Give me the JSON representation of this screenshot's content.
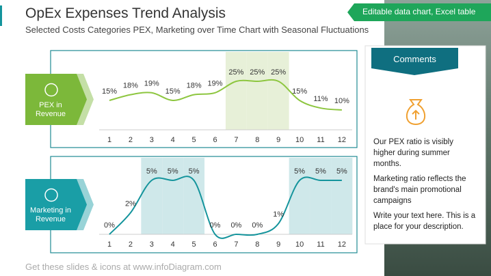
{
  "header": {
    "title": "OpEx Expenses Trend Analysis",
    "subtitle": "Selected Costs Categories PEX, Marketing over Time Chart with Seasonal Fluctuations",
    "badge": "Editable data chart, Excel table"
  },
  "chart_data": [
    {
      "type": "line",
      "label": "PEX in Revenue",
      "categories": [
        "1",
        "2",
        "3",
        "4",
        "5",
        "6",
        "7",
        "8",
        "9",
        "10",
        "11",
        "12"
      ],
      "values": [
        15,
        18,
        19,
        15,
        18,
        19,
        25,
        25,
        25,
        15,
        11,
        10
      ],
      "value_labels": [
        "15%",
        "18%",
        "19%",
        "15%",
        "18%",
        "19%",
        "25%",
        "25%",
        "25%",
        "15%",
        "11%",
        "10%"
      ],
      "color": "#8dc63f",
      "label_color": "#7cb83a",
      "highlighted": [
        false,
        false,
        false,
        false,
        false,
        false,
        true,
        true,
        true,
        false,
        false,
        false
      ],
      "highlight_color": "#e7f0d8"
    },
    {
      "type": "line",
      "label": "Marketing in Revenue",
      "categories": [
        "1",
        "2",
        "3",
        "4",
        "5",
        "6",
        "7",
        "8",
        "9",
        "10",
        "11",
        "12"
      ],
      "values": [
        0,
        2,
        5,
        5,
        5,
        0,
        0,
        0,
        1,
        5,
        5,
        5
      ],
      "value_labels": [
        "0%",
        "2%",
        "5%",
        "5%",
        "5%",
        "0%",
        "0%",
        "0%",
        "1%",
        "5%",
        "5%",
        "5%"
      ],
      "color": "#14949c",
      "label_color": "#1a9ea6",
      "highlighted": [
        false,
        false,
        true,
        true,
        true,
        false,
        false,
        false,
        false,
        true,
        true,
        true
      ],
      "highlight_color": "#cfe8ea"
    }
  ],
  "comments": {
    "title": "Comments",
    "paragraphs": [
      "Our PEX ratio is visibly higher during summer months.",
      "Marketing ratio reflects the brand's main promotional campaigns",
      "Write your text here. This is a place for your description."
    ]
  },
  "footer": "Get these slides & icons at www.infoDiagram.com"
}
